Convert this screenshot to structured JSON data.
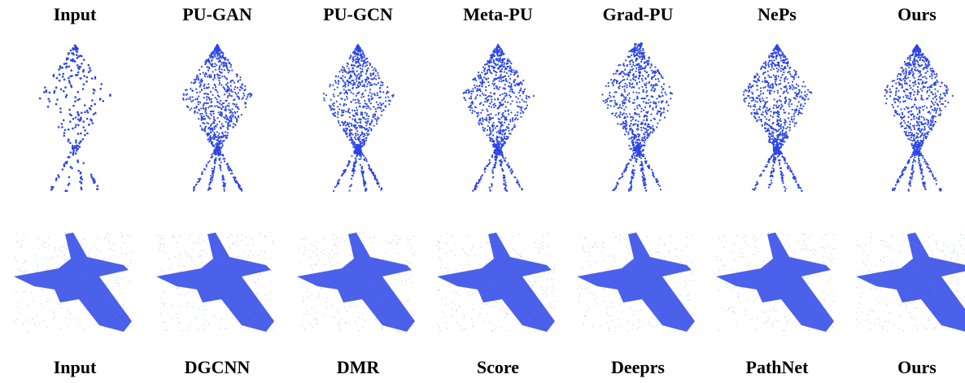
{
  "top_row": {
    "labels": [
      "Input",
      "PU-GAN",
      "PU-GCN",
      "Meta-PU",
      "Grad-PU",
      "NePs",
      "Ours"
    ]
  },
  "bottom_row": {
    "labels": [
      "Input",
      "DGCNN",
      "DMR",
      "Score",
      "Deeprs",
      "PathNet",
      "Ours"
    ]
  }
}
